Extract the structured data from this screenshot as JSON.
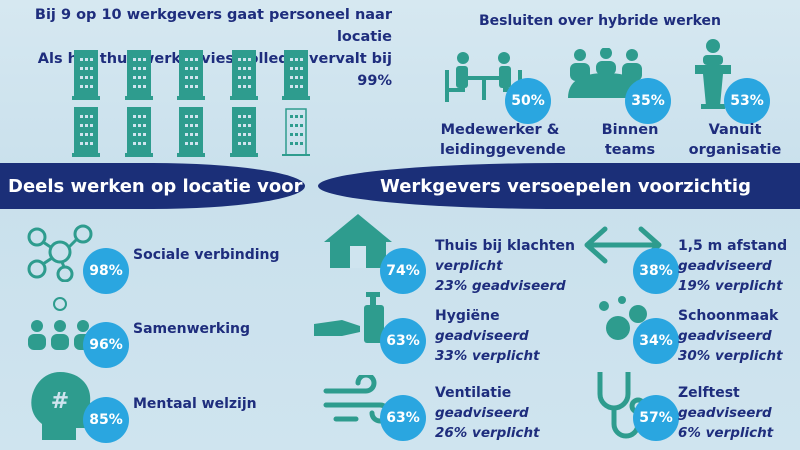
{
  "header": {
    "line1": "Bij 9 op 10 werkgevers gaat personeel naar locatie",
    "line2": "Als het thuiswerkadvies volledig vervalt bij 99%"
  },
  "buildings": {
    "filled": 9,
    "total": 10
  },
  "hybrid": {
    "title": "Besluiten over hybride werken",
    "items": [
      {
        "pct": "50%",
        "label1": "Medewerker &",
        "label2": "leidinggevende",
        "icon": "meeting-table-icon"
      },
      {
        "pct": "35%",
        "label1": "Binnen",
        "label2": "teams",
        "icon": "team-icon"
      },
      {
        "pct": "53%",
        "label1": "Vanuit",
        "label2": "organisatie",
        "icon": "podium-icon"
      }
    ]
  },
  "banners": {
    "left": "Deels werken op locatie voor",
    "right": "Werkgevers versoepelen voorzichtig"
  },
  "reasons": [
    {
      "pct": "98%",
      "label": "Sociale verbinding",
      "icon": "network-icon"
    },
    {
      "pct": "96%",
      "label": "Samenwerking",
      "icon": "collaboration-icon"
    },
    {
      "pct": "85%",
      "label": "Mentaal welzijn",
      "icon": "head-puzzle-icon"
    }
  ],
  "measures": [
    {
      "pct": "74%",
      "label": "Thuis bij klachten",
      "s1": "verplicht",
      "s2": "23% geadviseerd",
      "icon": "house-icon"
    },
    {
      "pct": "38%",
      "label": "1,5 m afstand",
      "s1": "geadviseerd",
      "s2": "19% verplicht",
      "icon": "distance-arrow-icon"
    },
    {
      "pct": "63%",
      "label": "Hygiëne",
      "s1": "geadviseerd",
      "s2": "33% verplicht",
      "icon": "hand-sanitizer-icon"
    },
    {
      "pct": "34%",
      "label": "Schoonmaak",
      "s1": "geadviseerd",
      "s2": "30% verplicht",
      "icon": "bubbles-icon"
    },
    {
      "pct": "63%",
      "label": "Ventilatie",
      "s1": "geadviseerd",
      "s2": "26% verplicht",
      "icon": "wind-icon"
    },
    {
      "pct": "57%",
      "label": "Zelftest",
      "s1": "geadviseerd",
      "s2": "6% verplicht",
      "icon": "stethoscope-icon"
    }
  ],
  "colors": {
    "teal": "#2e9c8e",
    "navy": "#1b2f78",
    "circle": "#2aa6e0",
    "text": "#1e2d7d"
  }
}
